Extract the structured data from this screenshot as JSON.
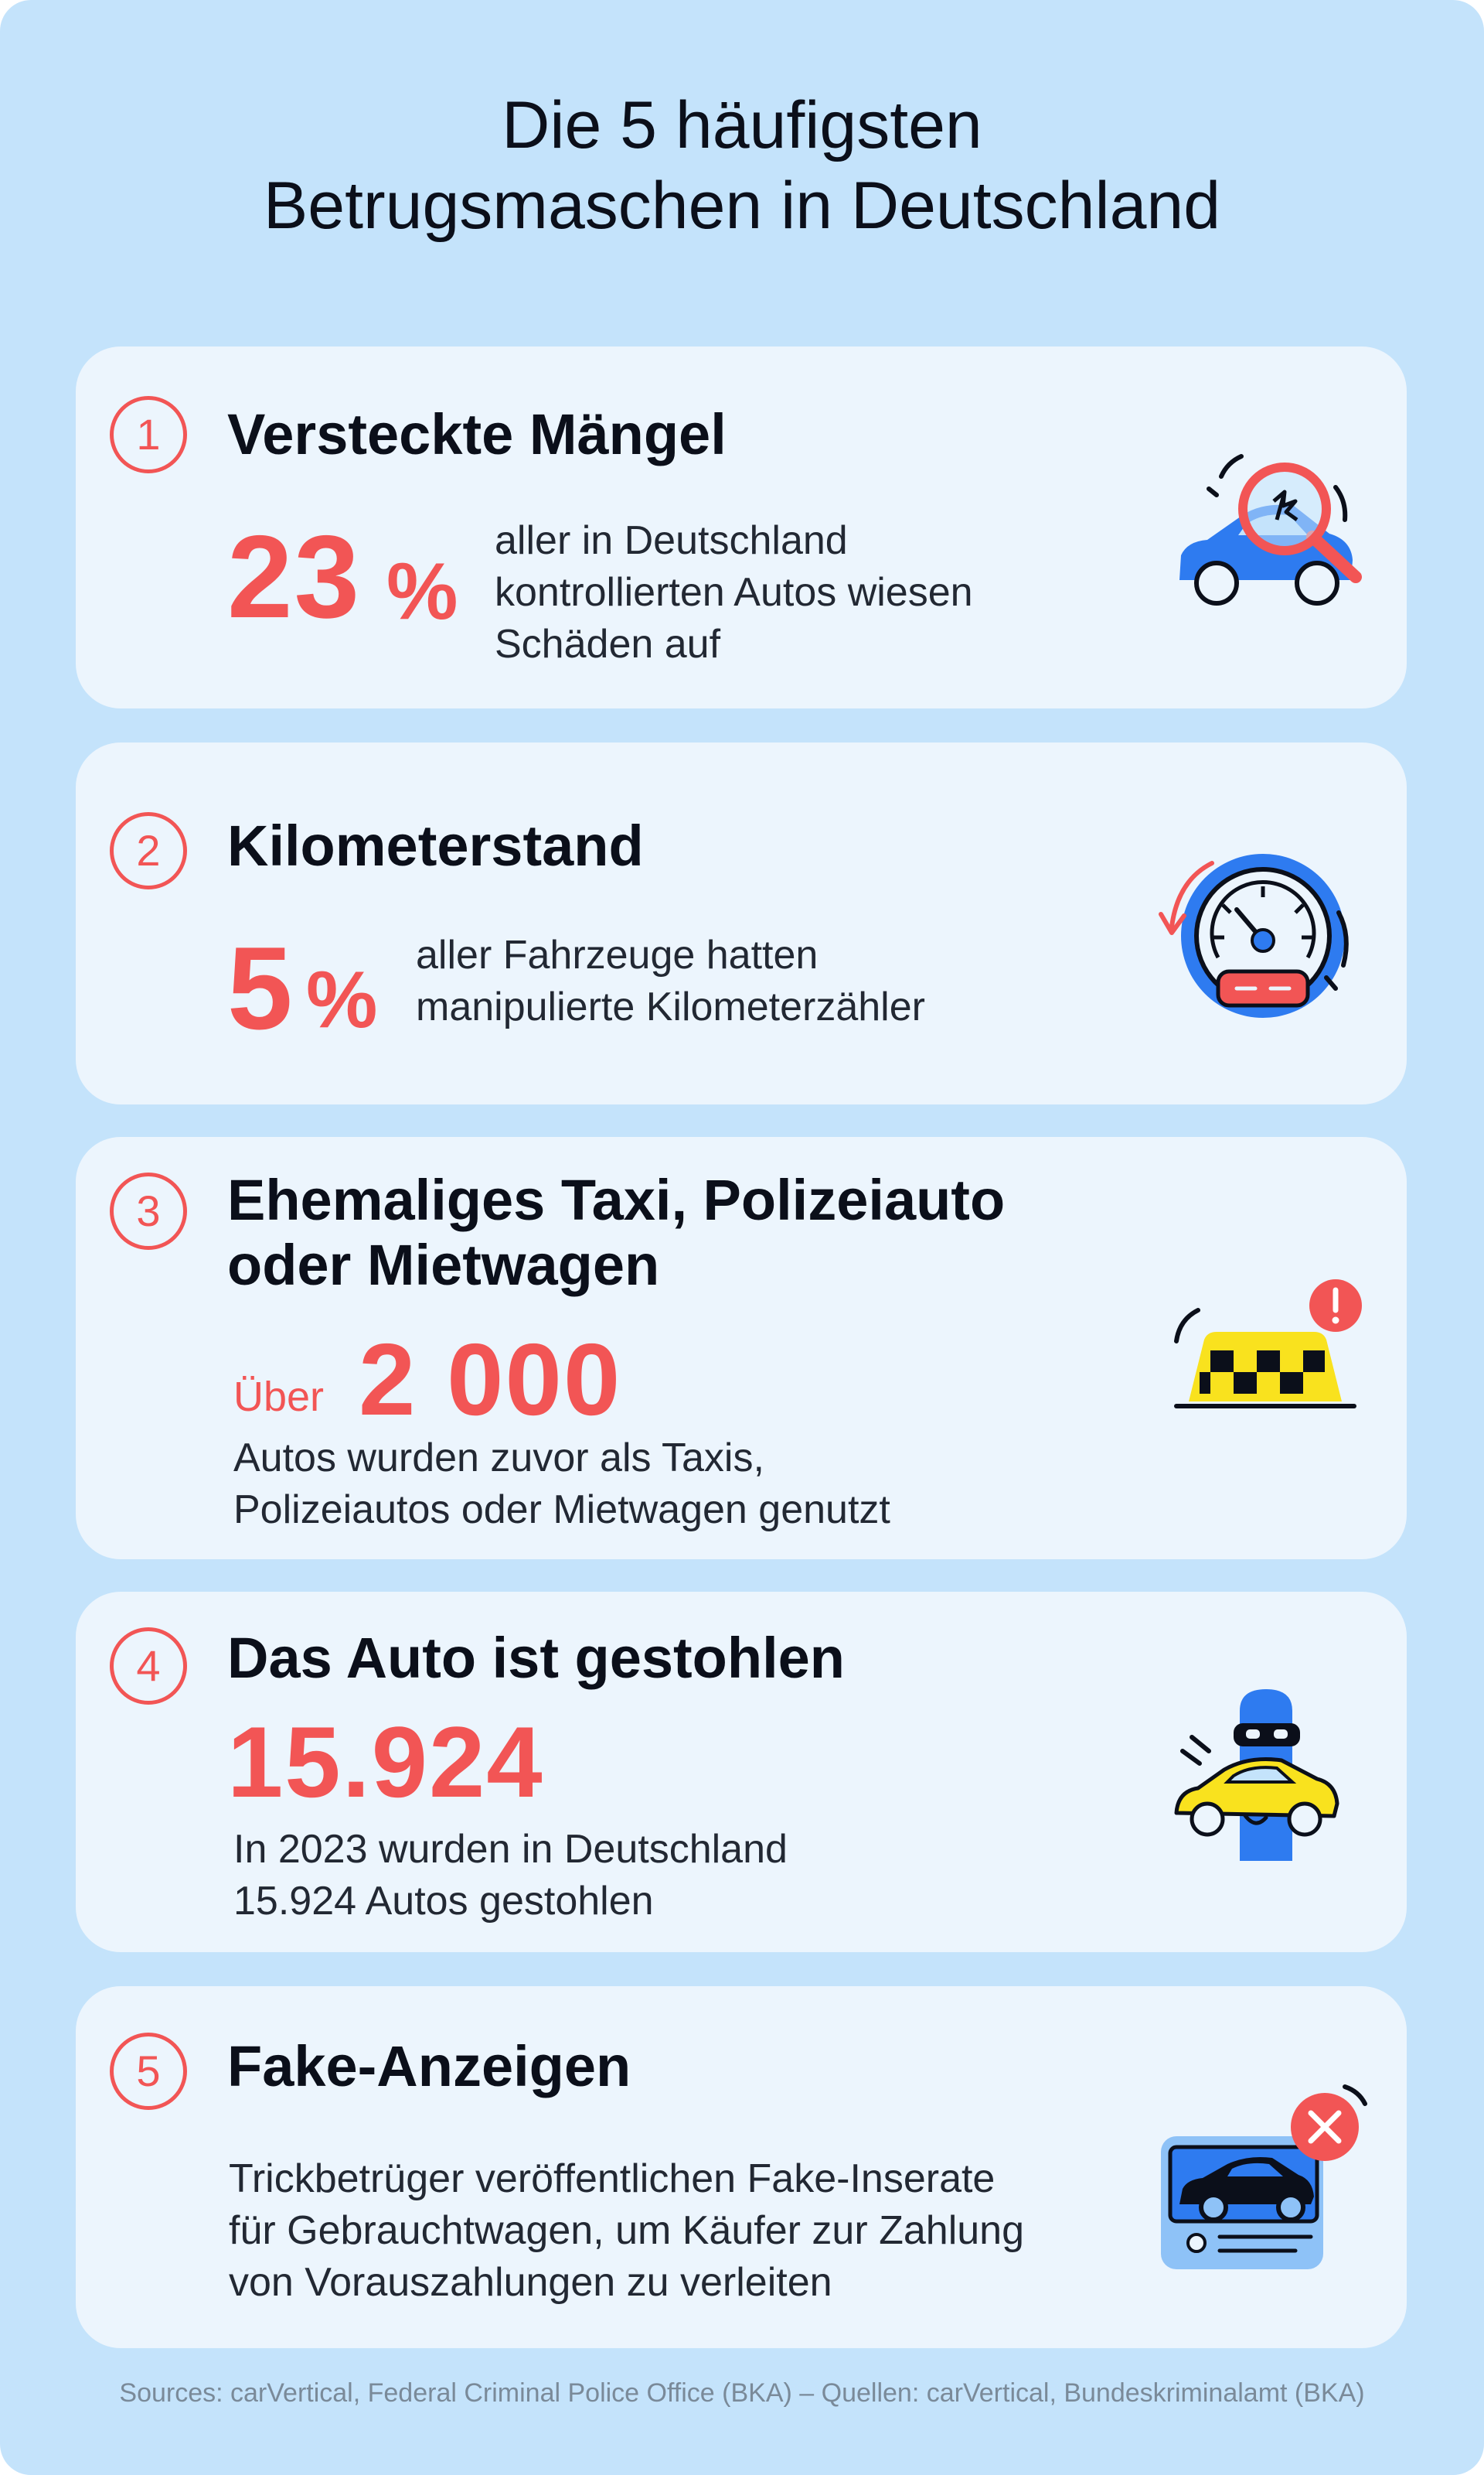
{
  "title_line1": "Die 5 häufigsten",
  "title_line2": "Betrugsmaschen in Deutschland",
  "items": [
    {
      "number": "1",
      "heading": "Versteckte Mängel",
      "stat": "23",
      "unit": "%",
      "desc_lines": [
        "aller in Deutschland",
        "kontrollierten Autos wiesen",
        "Schäden auf"
      ],
      "icon": "car-magnifier-icon"
    },
    {
      "number": "2",
      "heading": "Kilometerstand",
      "stat": "5",
      "unit": "%",
      "desc_lines": [
        "aller Fahrzeuge hatten",
        "manipulierte Kilometerzähler"
      ],
      "icon": "speedometer-icon"
    },
    {
      "number": "3",
      "heading_lines": [
        "Ehemaliges Taxi, Polizeiauto",
        "oder Mietwagen"
      ],
      "prefix": "Über",
      "stat": "2 000",
      "desc_lines": [
        "Autos wurden zuvor als Taxis,",
        "Polizeiautos oder Mietwagen genutzt"
      ],
      "icon": "taxi-sign-icon"
    },
    {
      "number": "4",
      "heading": "Das Auto ist gestohlen",
      "stat": "15.924",
      "desc_lines": [
        "In 2023 wurden in Deutschland",
        "15.924 Autos gestohlen"
      ],
      "icon": "thief-car-icon"
    },
    {
      "number": "5",
      "heading": "Fake-Anzeigen",
      "desc_lines": [
        "Trickbetrüger veröffentlichen Fake-Inserate",
        "für Gebrauchtwagen, um Käufer zur Zahlung",
        "von Vorauszahlungen zu verleiten"
      ],
      "icon": "fake-listing-icon"
    }
  ],
  "footer": "Sources: carVertical, Federal Criminal Police Office (BKA) – Quellen: carVertical, Bundeskriminalamt (BKA)",
  "colors": {
    "background": "#c4e3fb",
    "card": "#ecf5fd",
    "accent": "#f25555",
    "icon_blue": "#2e7bf0",
    "icon_yellow": "#f9e21e"
  }
}
